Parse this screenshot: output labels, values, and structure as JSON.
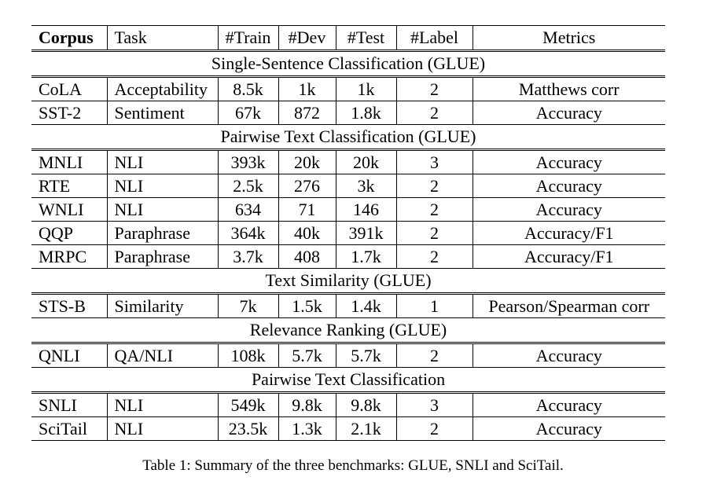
{
  "table": {
    "headers": [
      "Corpus",
      "Task",
      "#Train",
      "#Dev",
      "#Test",
      "#Label",
      "Metrics"
    ],
    "sections": [
      {
        "title": "Single-Sentence Classification (GLUE)",
        "rows": [
          [
            "CoLA",
            "Acceptability",
            "8.5k",
            "1k",
            "1k",
            "2",
            "Matthews corr"
          ],
          [
            "SST-2",
            "Sentiment",
            "67k",
            "872",
            "1.8k",
            "2",
            "Accuracy"
          ]
        ]
      },
      {
        "title": "Pairwise Text Classification (GLUE)",
        "rows": [
          [
            "MNLI",
            "NLI",
            "393k",
            "20k",
            "20k",
            "3",
            "Accuracy"
          ],
          [
            "RTE",
            "NLI",
            "2.5k",
            "276",
            "3k",
            "2",
            "Accuracy"
          ],
          [
            "WNLI",
            "NLI",
            "634",
            "71",
            "146",
            "2",
            "Accuracy"
          ],
          [
            "QQP",
            "Paraphrase",
            "364k",
            "40k",
            "391k",
            "2",
            "Accuracy/F1"
          ],
          [
            "MRPC",
            "Paraphrase",
            "3.7k",
            "408",
            "1.7k",
            "2",
            "Accuracy/F1"
          ]
        ]
      },
      {
        "title": "Text Similarity (GLUE)",
        "rows": [
          [
            "STS-B",
            "Similarity",
            "7k",
            "1.5k",
            "1.4k",
            "1",
            "Pearson/Spearman corr"
          ]
        ]
      },
      {
        "title": "Relevance Ranking (GLUE)",
        "rows": [
          [
            "QNLI",
            "QA/NLI",
            "108k",
            "5.7k",
            "5.7k",
            "2",
            "Accuracy"
          ]
        ]
      },
      {
        "title": "Pairwise Text Classification",
        "rows": [
          [
            "SNLI",
            "NLI",
            "549k",
            "9.8k",
            "9.8k",
            "3",
            "Accuracy"
          ],
          [
            "SciTail",
            "NLI",
            "23.5k",
            "1.3k",
            "2.1k",
            "2",
            "Accuracy"
          ]
        ]
      }
    ]
  },
  "caption": "Table 1: Summary of the three benchmarks: GLUE, SNLI and SciTail."
}
